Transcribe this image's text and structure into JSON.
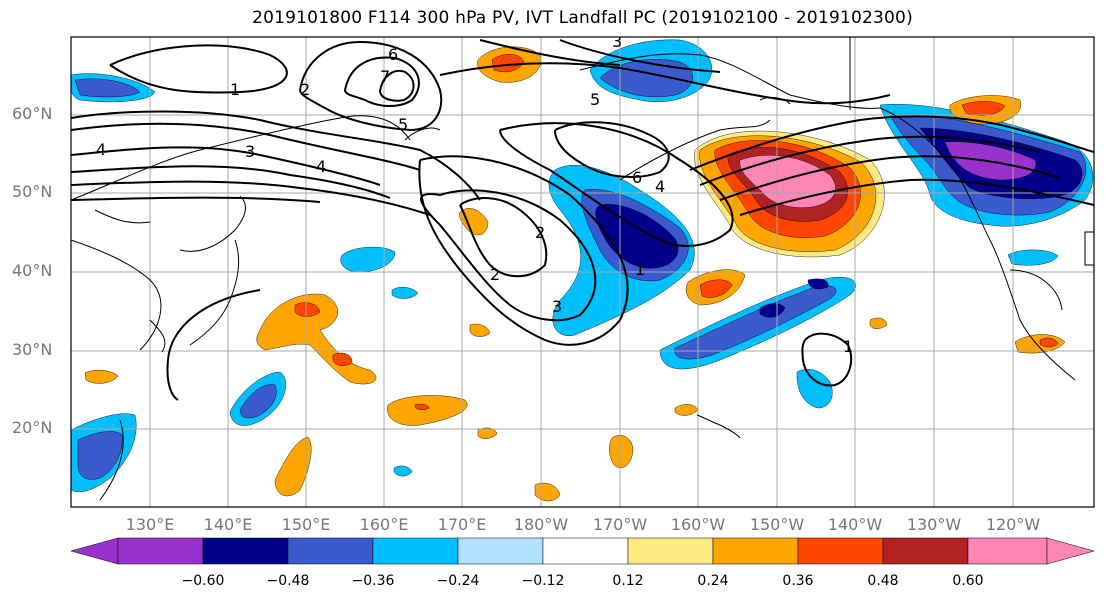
{
  "title": "2019101800 F114 300 hPa PV, IVT Landfall PC (2019102100 - 2019102300)",
  "lat_labels": [
    "60°N",
    "50°N",
    "40°N",
    "30°N",
    "20°N"
  ],
  "lon_labels": [
    "130°E",
    "140°E",
    "150°E",
    "160°E",
    "170°E",
    "180°W",
    "170°W",
    "160°W",
    "150°W",
    "140°W",
    "130°W",
    "120°W"
  ],
  "contour_labels": [
    "1",
    "2",
    "3",
    "4",
    "5",
    "6",
    "7"
  ],
  "colorbar": {
    "ticks": [
      "−0.60",
      "−0.48",
      "−0.36",
      "−0.24",
      "−0.12",
      "0.12",
      "0.24",
      "0.36",
      "0.48",
      "0.60"
    ],
    "colors": [
      "#9932CC",
      "#00008B",
      "#3A5ACD",
      "#00BFFF",
      "#B0E2FF",
      "#FFFFFF",
      "#FFE985",
      "#FFA500",
      "#FF4500",
      "#B22222",
      "#FF85B4"
    ]
  }
}
